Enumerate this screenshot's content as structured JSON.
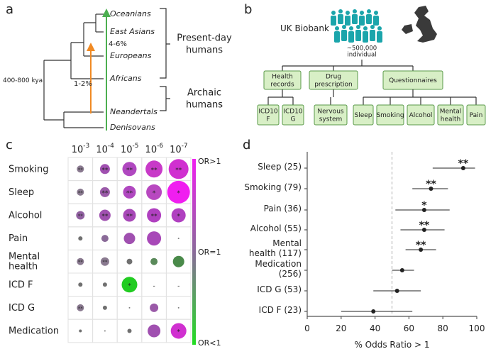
{
  "panel_labels": [
    "a",
    "b",
    "c",
    "d"
  ],
  "panel_a": {
    "leaves": [
      "Oceanians",
      "East Asians",
      "Europeans",
      "Africans",
      "Neandertals",
      "Denisovans"
    ],
    "root_label": "400-800 kya",
    "green_flow": "4-6%",
    "orange_flow": "1-2%",
    "groups": [
      "Present-day\nhumans",
      "Archaic\nhumans"
    ]
  },
  "panel_b": {
    "title": "UK Biobank",
    "count": "~500,000\nindividual",
    "sources": [
      {
        "label": "Health\nrecords",
        "children": [
          "ICD10\nF",
          "ICD10\nG"
        ]
      },
      {
        "label": "Drug\nprescription",
        "children": [
          "Nervous\nsystem"
        ]
      },
      {
        "label": "Questionnaires",
        "children": [
          "Sleep",
          "Smoking",
          "Alcohol",
          "Mental\nhealth",
          "Pain"
        ]
      }
    ]
  },
  "chart_data": [
    {
      "type": "bubble-grid",
      "column_base": "10",
      "column_exponents": [
        "-3",
        "-4",
        "-5",
        "-6",
        "-7"
      ],
      "rows": [
        "Smoking",
        "Sleep",
        "Alcohol",
        "Pain",
        "Mental\nhealth",
        "ICD F",
        "ICD G",
        "Medication"
      ],
      "sizes": [
        [
          5,
          7,
          10,
          12,
          14
        ],
        [
          5,
          7,
          9,
          11,
          16
        ],
        [
          6,
          8,
          9,
          10,
          10
        ],
        [
          3,
          5,
          8,
          10,
          1
        ],
        [
          5,
          6,
          4,
          5,
          8
        ],
        [
          3,
          3,
          11,
          null,
          null
        ],
        [
          5,
          3,
          1,
          6,
          1
        ],
        [
          2,
          1,
          3,
          9,
          11
        ]
      ],
      "colors": [
        [
          "#8a7a90",
          "#a050b0",
          "#b048c0",
          "#c83ac8",
          "#d030d0"
        ],
        [
          "#8a7a90",
          "#9a5aa8",
          "#b048c0",
          "#b848c0",
          "#f01ef0"
        ],
        [
          "#9060a0",
          "#a050b0",
          "#a848b8",
          "#b040c0",
          "#b040c0"
        ],
        [
          "#707070",
          "#8a6a98",
          "#a050b0",
          "#a848b8",
          "#808080"
        ],
        [
          "#8a7a90",
          "#8a7a90",
          "#707070",
          "#5a8a5a",
          "#4a8a4a"
        ],
        [
          "#707070",
          "#707070",
          "#22cc22",
          null,
          null
        ],
        [
          "#8a7a90",
          "#707070",
          "#808080",
          "#9a5aa8",
          "#808080"
        ],
        [
          "#707070",
          "#808080",
          "#707070",
          "#a050b0",
          "#d030d0"
        ]
      ],
      "labels": [
        [
          "**",
          "**",
          "**",
          "**",
          "**"
        ],
        [
          "**",
          "**",
          "**",
          "*",
          "*"
        ],
        [
          "**",
          "**",
          "**",
          "**",
          "*"
        ],
        [
          null,
          null,
          null,
          null,
          null
        ],
        [
          "**",
          "**",
          null,
          null,
          null
        ],
        [
          null,
          null,
          "*",
          "-",
          "-"
        ],
        [
          "**",
          null,
          null,
          null,
          null
        ],
        [
          null,
          null,
          null,
          null,
          "*"
        ]
      ],
      "legend": [
        "OR>1",
        "OR=1",
        "OR<1"
      ],
      "legend_colors": [
        "#f01ef0",
        "#8a6a9a",
        "#22dd22"
      ]
    },
    {
      "type": "dot-interval",
      "categories": [
        "Sleep (25)",
        "Smoking (79)",
        "Pain (36)",
        "Alcohol (55)",
        "Mental\nhealth (117)",
        "Medication\n(256)",
        "ICD G (53)",
        "ICD F (23)"
      ],
      "values": [
        92,
        73,
        69,
        69,
        67,
        56,
        53,
        39
      ],
      "lower": [
        74,
        62,
        52,
        55,
        58,
        50,
        39,
        20
      ],
      "upper": [
        99,
        83,
        84,
        81,
        76,
        63,
        67,
        62
      ],
      "stars": [
        "**",
        "**",
        "*",
        "**",
        "**",
        null,
        null,
        null
      ],
      "reference": 50,
      "xlim": [
        0,
        100
      ],
      "xticks": [
        0,
        20,
        40,
        60,
        80,
        100
      ],
      "xlabel": "% Odds Ratio > 1",
      "color": "#222"
    }
  ]
}
